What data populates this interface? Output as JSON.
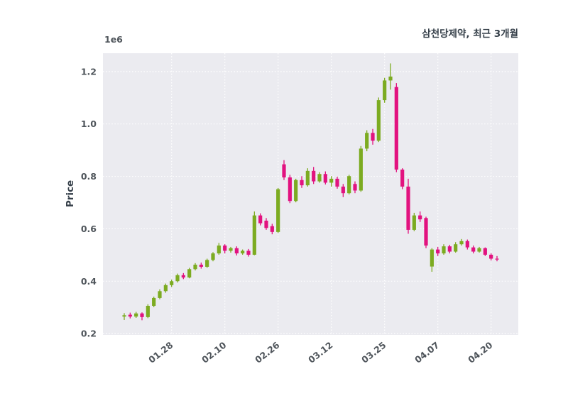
{
  "chart_data": {
    "type": "candlestick",
    "title": "삼천당제약, 최근 3개월",
    "ylabel": "Price",
    "scale_label": "1e6",
    "legend_position": "none",
    "grid": true,
    "ylim": [
      195000,
      1270000
    ],
    "yticks": [
      200000,
      400000,
      600000,
      800000,
      1000000,
      1200000
    ],
    "ytick_labels": [
      "0.2",
      "0.4",
      "0.6",
      "0.8",
      "1.0",
      "1.2"
    ],
    "xtick_indices": [
      8,
      17,
      26,
      35,
      44,
      53,
      62
    ],
    "xtick_labels": [
      "01.28",
      "02.10",
      "02.26",
      "03.12",
      "03.25",
      "04.07",
      "04.20"
    ],
    "colors": {
      "up": "#7cab21",
      "down": "#e2127f",
      "panel_background": "#ebebf0",
      "grid": "#ffffff",
      "tick_text": "#4f555b",
      "title_text": "#36404a"
    },
    "ohlc_columns": [
      "open",
      "high",
      "low",
      "close"
    ],
    "ohlc": [
      [
        265000,
        278000,
        252000,
        270000
      ],
      [
        272000,
        280000,
        258000,
        265000
      ],
      [
        265000,
        283000,
        260000,
        277000
      ],
      [
        277000,
        281000,
        251000,
        263000
      ],
      [
        263000,
        312000,
        259000,
        306000
      ],
      [
        306000,
        341000,
        301000,
        336000
      ],
      [
        336000,
        369000,
        331000,
        362000
      ],
      [
        362000,
        391000,
        356000,
        385000
      ],
      [
        385000,
        406000,
        378000,
        400000
      ],
      [
        400000,
        429000,
        395000,
        423000
      ],
      [
        423000,
        431000,
        408000,
        414000
      ],
      [
        414000,
        451000,
        411000,
        446000
      ],
      [
        446000,
        469000,
        441000,
        463000
      ],
      [
        463000,
        471000,
        448000,
        455000
      ],
      [
        455000,
        486000,
        451000,
        481000
      ],
      [
        481000,
        511000,
        476000,
        506000
      ],
      [
        506000,
        546000,
        501000,
        536000
      ],
      [
        536000,
        541000,
        506000,
        516000
      ],
      [
        516000,
        531000,
        509000,
        526000
      ],
      [
        526000,
        533000,
        498000,
        506000
      ],
      [
        506000,
        521000,
        501000,
        516000
      ],
      [
        516000,
        523000,
        494000,
        501000
      ],
      [
        501000,
        666000,
        499000,
        651000
      ],
      [
        651000,
        659000,
        613000,
        621000
      ],
      [
        631000,
        641000,
        596000,
        603000
      ],
      [
        610000,
        619000,
        579000,
        588000
      ],
      [
        588000,
        756000,
        584000,
        751000
      ],
      [
        846000,
        862000,
        786000,
        796000
      ],
      [
        796000,
        806000,
        698000,
        706000
      ],
      [
        706000,
        791000,
        701000,
        786000
      ],
      [
        786000,
        801000,
        756000,
        766000
      ],
      [
        766000,
        831000,
        761000,
        821000
      ],
      [
        821000,
        836000,
        771000,
        781000
      ],
      [
        781000,
        816000,
        776000,
        809000
      ],
      [
        809000,
        819000,
        769000,
        776000
      ],
      [
        776000,
        801000,
        761000,
        791000
      ],
      [
        791000,
        799000,
        753000,
        761000
      ],
      [
        761000,
        771000,
        721000,
        736000
      ],
      [
        736000,
        806000,
        731000,
        801000
      ],
      [
        771000,
        781000,
        736000,
        746000
      ],
      [
        746000,
        916000,
        741000,
        906000
      ],
      [
        906000,
        976000,
        896000,
        966000
      ],
      [
        966000,
        981000,
        921000,
        936000
      ],
      [
        936000,
        1101000,
        931000,
        1091000
      ],
      [
        1091000,
        1176000,
        1081000,
        1166000
      ],
      [
        1166000,
        1231000,
        1131000,
        1181000
      ],
      [
        1141000,
        1156000,
        816000,
        826000
      ],
      [
        826000,
        831000,
        751000,
        761000
      ],
      [
        761000,
        791000,
        581000,
        596000
      ],
      [
        596000,
        661000,
        591000,
        651000
      ],
      [
        651000,
        666000,
        626000,
        636000
      ],
      [
        641000,
        646000,
        526000,
        536000
      ],
      [
        456000,
        526000,
        436000,
        521000
      ],
      [
        521000,
        531000,
        496000,
        506000
      ],
      [
        506000,
        541000,
        501000,
        533000
      ],
      [
        533000,
        539000,
        506000,
        513000
      ],
      [
        513000,
        549000,
        509000,
        541000
      ],
      [
        541000,
        561000,
        536000,
        553000
      ],
      [
        553000,
        559000,
        521000,
        529000
      ],
      [
        529000,
        536000,
        506000,
        513000
      ],
      [
        513000,
        531000,
        509000,
        526000
      ],
      [
        526000,
        529000,
        496000,
        501000
      ],
      [
        501000,
        506000,
        479000,
        486000
      ],
      [
        486000,
        496000,
        476000,
        483000
      ]
    ]
  }
}
